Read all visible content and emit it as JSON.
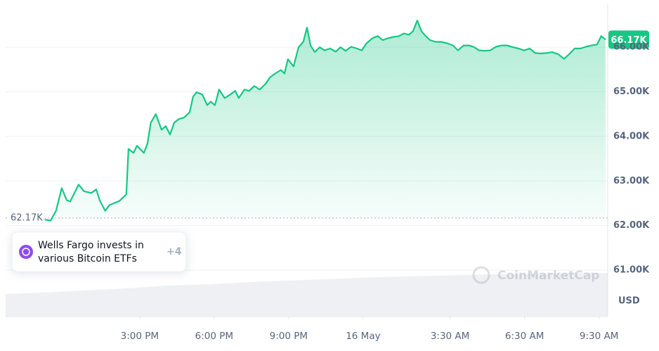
{
  "chart_data": {
    "type": "line",
    "color": "#16c784",
    "x": [
      -12.88,
      -12.59,
      -12.37,
      -12.14,
      -11.94,
      -11.8,
      -11.46,
      -11.24,
      -10.95,
      -10.75,
      -10.61,
      -10.39,
      -10.22,
      -9.82,
      -9.54,
      -9.45,
      -9.25,
      -9.11,
      -8.83,
      -8.69,
      -8.55,
      -8.35,
      -8.12,
      -7.95,
      -7.78,
      -7.61,
      -7.42,
      -7.22,
      -6.99,
      -6.85,
      -6.71,
      -6.48,
      -6.28,
      -6.14,
      -5.97,
      -5.8,
      -5.58,
      -5.35,
      -5.15,
      -5.01,
      -4.78,
      -4.59,
      -4.39,
      -4.16,
      -3.93,
      -3.74,
      -3.54,
      -3.31,
      -3.17,
      -3.03,
      -2.8,
      -2.6,
      -2.41,
      -2.26,
      -2.12,
      -1.95,
      -1.75,
      -1.56,
      -1.33,
      -1.1,
      -0.91,
      -0.71,
      -0.48,
      -0.25,
      -0.06,
      0.14,
      0.37,
      0.59,
      0.79,
      0.99,
      1.22,
      1.44,
      1.64,
      1.84,
      2.01,
      2.18,
      2.35,
      2.52,
      2.69,
      2.92,
      3.14,
      3.37,
      3.62,
      3.82,
      4.05,
      4.27,
      4.47,
      4.67,
      4.9,
      5.12,
      5.35,
      5.58,
      5.8,
      6.03,
      6.26,
      6.48,
      6.71,
      6.93,
      7.16,
      7.39,
      7.61,
      7.87,
      8.09,
      8.29,
      8.52,
      8.75,
      8.97,
      9.2,
      9.42,
      9.59,
      9.76
    ],
    "values": [
      62140,
      62110,
      62330,
      62840,
      62570,
      62540,
      62920,
      62770,
      62730,
      62810,
      62570,
      62330,
      62460,
      62550,
      62700,
      63720,
      63630,
      63790,
      63630,
      63830,
      64310,
      64500,
      64150,
      64230,
      64040,
      64310,
      64390,
      64420,
      64540,
      64890,
      64990,
      64940,
      64700,
      64780,
      64700,
      65050,
      64860,
      64940,
      65020,
      64860,
      65050,
      65020,
      65130,
      65050,
      65180,
      65330,
      65410,
      65490,
      65410,
      65730,
      65570,
      66000,
      66120,
      66440,
      66040,
      65890,
      66000,
      65930,
      65970,
      65900,
      66000,
      65920,
      66010,
      65970,
      65930,
      66090,
      66200,
      66250,
      66160,
      66200,
      66230,
      66250,
      66310,
      66280,
      66360,
      66600,
      66360,
      66250,
      66160,
      66120,
      66120,
      66090,
      66040,
      65930,
      66040,
      66040,
      66000,
      65930,
      65920,
      65930,
      66010,
      66040,
      66040,
      66000,
      65970,
      65930,
      65970,
      65870,
      65860,
      65870,
      65890,
      65840,
      65740,
      65840,
      65970,
      65970,
      66010,
      66040,
      66060,
      66250,
      66170
    ],
    "xlim": [
      -14.4,
      9.85
    ],
    "xticks": [
      {
        "value": -9,
        "label": "3:00 PM"
      },
      {
        "value": -6,
        "label": "6:00 PM"
      },
      {
        "value": -3,
        "label": "9:00 PM"
      },
      {
        "value": 0,
        "label": "16 May"
      },
      {
        "value": 3.5,
        "label": "3:30 AM"
      },
      {
        "value": 6.5,
        "label": "6:30 AM"
      },
      {
        "value": 9.5,
        "label": "9:30 AM"
      }
    ],
    "ylim": [
      59960,
      66980
    ],
    "yticks": [
      {
        "value": 61000,
        "label": "61.00K"
      },
      {
        "value": 62000,
        "label": "62.00K"
      },
      {
        "value": 63000,
        "label": "63.00K"
      },
      {
        "value": 64000,
        "label": "64.00K"
      },
      {
        "value": 65000,
        "label": "65.00K"
      },
      {
        "value": 66000,
        "label": "66.00K"
      }
    ],
    "grid": true,
    "reference": {
      "value": 62170,
      "label": "62.17K"
    },
    "current": {
      "value": 66170,
      "label": "66.17K"
    },
    "currency": "USD",
    "watermark": "CoinMarketCap",
    "annotation": {
      "lines": [
        "Wells Fargo invests in",
        "various Bitcoin ETFs"
      ],
      "more": "+4"
    }
  }
}
